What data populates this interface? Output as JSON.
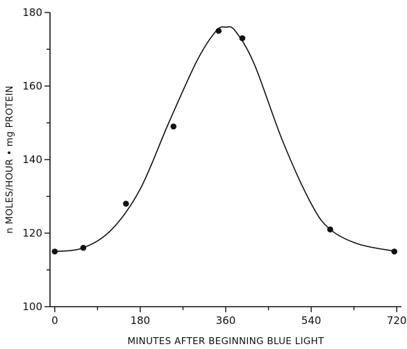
{
  "chart_data": {
    "type": "scatter",
    "title": "",
    "xlabel": "MINUTES AFTER BEGINNING BLUE LIGHT",
    "ylabel": "n MOLES/HOUR • mg PROTEIN",
    "xlim": [
      -10,
      730
    ],
    "ylim": [
      100,
      180
    ],
    "x_ticks": [
      0,
      180,
      360,
      540,
      720
    ],
    "y_ticks": [
      100,
      120,
      140,
      160,
      180
    ],
    "grid": false,
    "series": [
      {
        "style": "points",
        "color": "#111111",
        "x": [
          0,
          60,
          150,
          250,
          345,
          395,
          580,
          715
        ],
        "y": [
          115,
          116,
          128,
          149,
          175,
          173,
          121,
          115
        ]
      }
    ],
    "fitted_curve": {
      "color": "#111111",
      "x": [
        0,
        60,
        120,
        180,
        240,
        300,
        340,
        360,
        380,
        420,
        480,
        540,
        580,
        640,
        720
      ],
      "y": [
        115,
        116,
        121,
        132,
        150,
        167,
        175,
        176,
        175,
        166,
        145,
        128,
        121,
        117,
        115
      ]
    }
  }
}
